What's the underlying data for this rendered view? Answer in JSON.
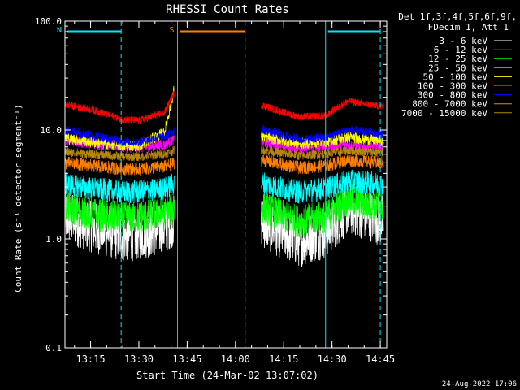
{
  "legend": {
    "header_line1": "Det 1f,3f,4f,5f,6f,9f,",
    "header_line2": "FDecim 1, Att 1"
  },
  "footer": {
    "timestamp": "24-Aug-2022 17:06"
  },
  "colors": {
    "background": "#000000",
    "axes": "#ffffff",
    "attenuator_state": "#00e5ff",
    "saa_state": "#ff7f00"
  },
  "chart_data": {
    "type": "line",
    "title": "RHESSI Count Rates",
    "xlabel": "Start Time (24-Mar-02 13:07:02)",
    "ylabel": "Count Rate (s⁻¹ detector segment⁻¹)",
    "y_scale": "log",
    "ylim": [
      0.1,
      100
    ],
    "x_start": "13:07:02",
    "x_end": "14:47:00",
    "x_ticks": [
      "13:15",
      "13:30",
      "13:45",
      "14:00",
      "14:15",
      "14:30",
      "14:45"
    ],
    "y_ticks": [
      "0.1",
      "1.0",
      "10.0",
      "100.0"
    ],
    "grid": false,
    "legend_position": "top-right outside",
    "series": [
      {
        "name": "3 - 6 keV",
        "color": "#ffffff",
        "x": [
          "13:07:02",
          "13:15",
          "13:25",
          "13:30",
          "13:38",
          "13:41",
          "14:08",
          "14:15",
          "14:20",
          "14:28",
          "14:35",
          "14:45"
        ],
        "y": [
          1.6,
          1.3,
          1.05,
          1.1,
          1.25,
          1.5,
          1.45,
          1.1,
          0.95,
          1.15,
          1.9,
          1.5
        ]
      },
      {
        "name": "6 - 12 keV",
        "color": "#ff00ff",
        "x": [
          "13:07:02",
          "13:15",
          "13:25",
          "13:30",
          "13:38",
          "13:41",
          "14:08",
          "14:15",
          "14:20",
          "14:28",
          "14:35",
          "14:45"
        ],
        "y": [
          8.0,
          7.6,
          7.0,
          6.9,
          7.3,
          8.3,
          7.8,
          7.2,
          6.8,
          7.0,
          7.4,
          6.8
        ]
      },
      {
        "name": "12 - 25 keV",
        "color": "#00ff00",
        "x": [
          "13:07:02",
          "13:15",
          "13:25",
          "13:30",
          "13:38",
          "13:41",
          "14:08",
          "14:15",
          "14:20",
          "14:28",
          "14:35",
          "14:45"
        ],
        "y": [
          2.0,
          1.7,
          1.55,
          1.6,
          1.7,
          1.9,
          2.0,
          1.6,
          1.45,
          1.6,
          2.3,
          2.0
        ]
      },
      {
        "name": "25 - 50 keV",
        "color": "#00ffff",
        "x": [
          "13:07:02",
          "13:15",
          "13:25",
          "13:30",
          "13:38",
          "13:41",
          "14:08",
          "14:15",
          "14:20",
          "14:28",
          "14:35",
          "14:45"
        ],
        "y": [
          3.2,
          2.9,
          2.7,
          2.7,
          2.9,
          3.2,
          3.3,
          2.9,
          2.7,
          2.9,
          3.4,
          3.2
        ]
      },
      {
        "name": "50 - 100 keV",
        "color": "#ffff00",
        "x": [
          "13:07:02",
          "13:15",
          "13:25",
          "13:30",
          "13:38",
          "13:41",
          "14:08",
          "14:15",
          "14:20",
          "14:28",
          "14:35",
          "14:45"
        ],
        "y": [
          8.5,
          7.8,
          7.2,
          7.2,
          9.5,
          24.0,
          8.8,
          8.0,
          7.5,
          7.8,
          8.6,
          8.0
        ]
      },
      {
        "name": "100 - 300 keV",
        "color": "#ff0000",
        "x": [
          "13:07:02",
          "13:15",
          "13:25",
          "13:30",
          "13:38",
          "13:41",
          "14:08",
          "14:15",
          "14:20",
          "14:28",
          "14:35",
          "14:45"
        ],
        "y": [
          17,
          15.5,
          12.5,
          12.2,
          14.5,
          22,
          17,
          14.5,
          13.2,
          13.5,
          18.5,
          16.5
        ]
      },
      {
        "name": "300 - 800 keV",
        "color": "#0000ff",
        "x": [
          "13:07:02",
          "13:15",
          "13:25",
          "13:30",
          "13:38",
          "13:41",
          "14:08",
          "14:15",
          "14:20",
          "14:28",
          "14:35",
          "14:45"
        ],
        "y": [
          10.0,
          9.0,
          7.8,
          7.8,
          8.8,
          9.8,
          10.2,
          9.0,
          8.2,
          8.5,
          10.0,
          9.2
        ]
      },
      {
        "name": "800 - 7000 keV",
        "color": "#ff7f00",
        "x": [
          "13:07:02",
          "13:15",
          "13:25",
          "13:30",
          "13:38",
          "13:41",
          "14:08",
          "14:15",
          "14:20",
          "14:28",
          "14:35",
          "14:45"
        ],
        "y": [
          5.0,
          4.7,
          4.4,
          4.4,
          4.6,
          5.0,
          5.3,
          4.8,
          4.5,
          4.7,
          5.3,
          5.0
        ]
      },
      {
        "name": "7000 - 15000 keV",
        "color": "#b8860b",
        "x": [
          "13:07:02",
          "13:15",
          "13:25",
          "13:30",
          "13:38",
          "13:41",
          "14:08",
          "14:15",
          "14:20",
          "14:28",
          "14:35",
          "14:45"
        ],
        "y": [
          6.3,
          6.0,
          5.7,
          5.7,
          6.0,
          6.5,
          6.6,
          6.1,
          5.8,
          6.0,
          6.5,
          6.2
        ]
      }
    ],
    "gap": {
      "start": "13:41",
      "end": "14:08"
    },
    "state_bars": [
      {
        "label": "N",
        "color": "#00e5ff",
        "level": 80,
        "x_start": "13:07:02",
        "x_end": "13:24:30"
      },
      {
        "label": "",
        "color": "#00e5ff",
        "level": 80,
        "x_start": "14:28",
        "x_end": "14:45"
      },
      {
        "label": "S",
        "color": "#ff7f00",
        "level": 80,
        "x_start": "13:42",
        "x_end": "14:03"
      }
    ],
    "state_markers": [
      {
        "time": "13:24:30",
        "color": "#00e5ff",
        "style": "dashed"
      },
      {
        "time": "13:42",
        "color": "#ff7f00",
        "style": "solid"
      },
      {
        "time": "14:03",
        "color": "#ff7f00",
        "style": "dashed"
      },
      {
        "time": "14:28",
        "color": "#00e5ff",
        "style": "solid"
      },
      {
        "time": "14:45",
        "color": "#00e5ff",
        "style": "dashed"
      }
    ]
  }
}
